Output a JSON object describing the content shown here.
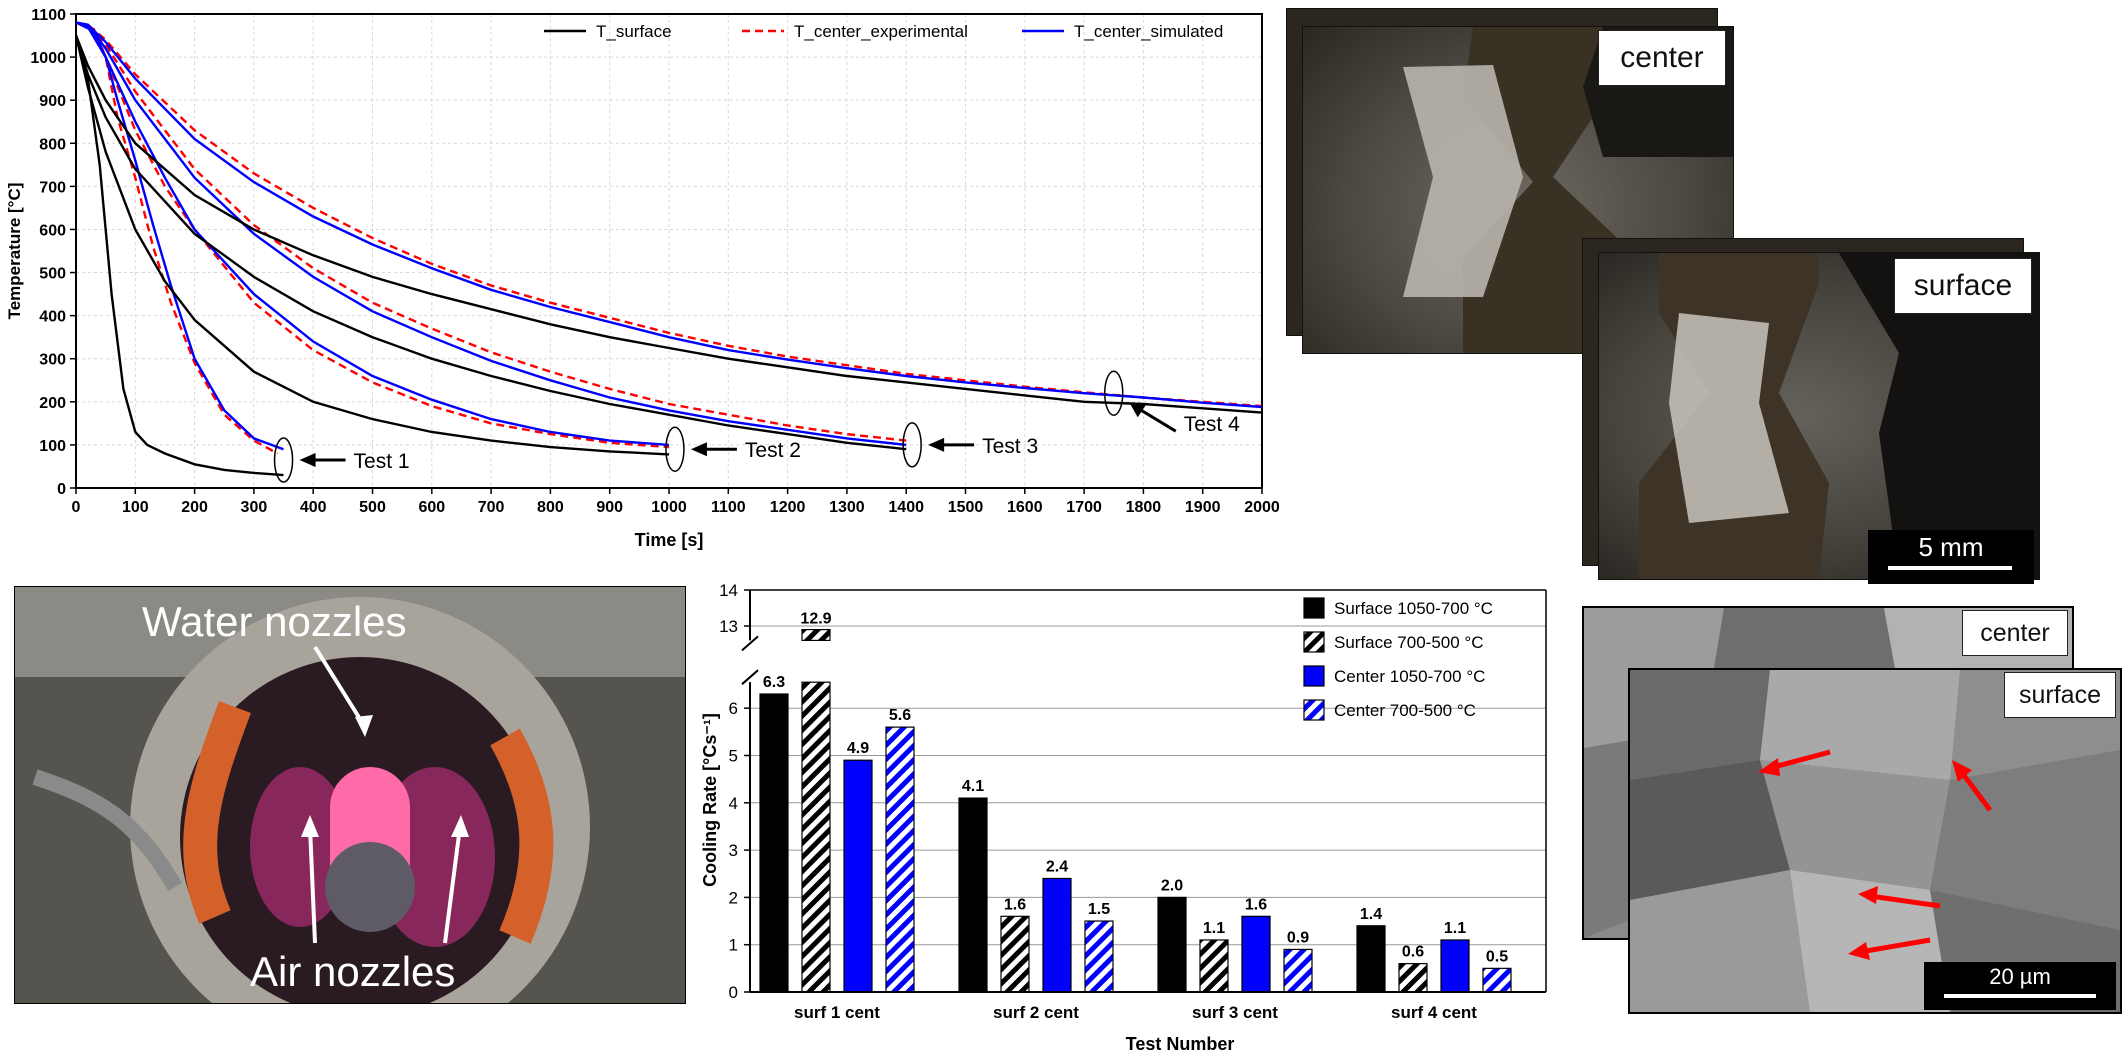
{
  "line_chart_legend": [
    "T_surface",
    "T_center_experimental",
    "T_center_simulated"
  ],
  "bar_chart_legend": [
    "Surface 1050-700 °C",
    "Surface 700-500 °C",
    "Center 1050-700 °C",
    "Center 700-500 °C"
  ],
  "photo_labels": {
    "macro_center": "center",
    "macro_surface": "surface",
    "macro_scale": "5 mm",
    "micro_center": "center",
    "micro_surface": "surface",
    "micro_scale": "20 µm",
    "water_nozzles": "Water nozzles",
    "air_nozzles": "Air nozzles"
  },
  "colors": {
    "surface": "#000000",
    "center_experimental": "#ff0000",
    "center_simulated": "#0000ff"
  },
  "chart_data": [
    {
      "type": "line",
      "xlabel": "Time [s]",
      "ylabel": "Temperature [°C]",
      "xlim": [
        0,
        2000
      ],
      "ylim": [
        0,
        1100
      ],
      "xticks": [
        0,
        100,
        200,
        300,
        400,
        500,
        600,
        700,
        800,
        900,
        1000,
        1100,
        1200,
        1300,
        1400,
        1500,
        1600,
        1700,
        1800,
        1900,
        2000
      ],
      "yticks": [
        0,
        100,
        200,
        300,
        400,
        500,
        600,
        700,
        800,
        900,
        1000,
        1100
      ],
      "grid": true,
      "legend": "top-right",
      "annotations": [
        "Test 1",
        "Test 2",
        "Test 3",
        "Test 4"
      ],
      "series": [
        {
          "name": "T_surface",
          "test": 1,
          "style": "solid",
          "color": "#000000",
          "x": [
            0,
            20,
            40,
            60,
            80,
            100,
            120,
            150,
            200,
            250,
            300,
            350
          ],
          "y": [
            1050,
            950,
            750,
            450,
            230,
            130,
            100,
            80,
            55,
            42,
            35,
            30
          ]
        },
        {
          "name": "T_center_experimental",
          "test": 1,
          "style": "dashed",
          "color": "#ff0000",
          "x": [
            0,
            30,
            50,
            70,
            100,
            130,
            160,
            200,
            250,
            300,
            340
          ],
          "y": [
            1080,
            1065,
            1000,
            860,
            720,
            560,
            430,
            290,
            170,
            110,
            80
          ]
        },
        {
          "name": "T_center_simulated",
          "test": 1,
          "style": "solid",
          "color": "#0000ff",
          "x": [
            0,
            30,
            50,
            70,
            100,
            130,
            160,
            200,
            250,
            300,
            350
          ],
          "y": [
            1080,
            1060,
            1000,
            900,
            760,
            610,
            470,
            300,
            180,
            115,
            90
          ]
        },
        {
          "name": "T_surface",
          "test": 2,
          "style": "solid",
          "color": "#000000",
          "x": [
            0,
            20,
            50,
            100,
            150,
            200,
            300,
            400,
            500,
            600,
            700,
            800,
            900,
            1000
          ],
          "y": [
            1050,
            930,
            780,
            600,
            480,
            390,
            270,
            200,
            160,
            130,
            110,
            95,
            85,
            78
          ]
        },
        {
          "name": "T_center_experimental",
          "test": 2,
          "style": "dashed",
          "color": "#ff0000",
          "x": [
            0,
            20,
            50,
            100,
            150,
            200,
            300,
            400,
            500,
            600,
            700,
            800,
            900,
            1000
          ],
          "y": [
            1080,
            1070,
            1000,
            830,
            700,
            600,
            430,
            320,
            245,
            190,
            150,
            125,
            105,
            95
          ]
        },
        {
          "name": "T_center_simulated",
          "test": 2,
          "style": "solid",
          "color": "#0000ff",
          "x": [
            0,
            20,
            50,
            100,
            150,
            200,
            300,
            400,
            500,
            600,
            700,
            800,
            900,
            1000
          ],
          "y": [
            1080,
            1070,
            1000,
            850,
            720,
            600,
            450,
            340,
            260,
            205,
            160,
            130,
            110,
            100
          ]
        },
        {
          "name": "T_surface",
          "test": 3,
          "style": "solid",
          "color": "#000000",
          "x": [
            0,
            20,
            50,
            100,
            200,
            300,
            400,
            500,
            600,
            700,
            800,
            900,
            1000,
            1100,
            1200,
            1300,
            1400
          ],
          "y": [
            1050,
            960,
            860,
            740,
            590,
            490,
            410,
            350,
            300,
            260,
            225,
            195,
            170,
            145,
            125,
            105,
            90
          ]
        },
        {
          "name": "T_center_experimental",
          "test": 3,
          "style": "dashed",
          "color": "#ff0000",
          "x": [
            0,
            20,
            50,
            100,
            200,
            300,
            400,
            500,
            600,
            700,
            800,
            900,
            1000,
            1100,
            1200,
            1300,
            1400
          ],
          "y": [
            1080,
            1075,
            1030,
            920,
            740,
            610,
            510,
            430,
            370,
            315,
            270,
            230,
            195,
            170,
            145,
            125,
            110
          ]
        },
        {
          "name": "T_center_simulated",
          "test": 3,
          "style": "solid",
          "color": "#0000ff",
          "x": [
            0,
            20,
            50,
            100,
            200,
            300,
            400,
            500,
            600,
            700,
            800,
            900,
            1000,
            1100,
            1200,
            1300,
            1400
          ],
          "y": [
            1080,
            1075,
            1020,
            900,
            720,
            590,
            490,
            410,
            350,
            295,
            250,
            210,
            180,
            155,
            135,
            115,
            100
          ]
        },
        {
          "name": "T_surface",
          "test": 4,
          "style": "solid",
          "color": "#000000",
          "x": [
            0,
            20,
            50,
            100,
            200,
            300,
            400,
            500,
            600,
            700,
            800,
            900,
            1000,
            1100,
            1200,
            1300,
            1400,
            1500,
            1600,
            1700,
            1800,
            1900,
            2000
          ],
          "y": [
            1050,
            980,
            900,
            800,
            680,
            600,
            540,
            490,
            450,
            415,
            380,
            350,
            325,
            300,
            280,
            260,
            245,
            230,
            215,
            200,
            195,
            185,
            175
          ]
        },
        {
          "name": "T_center_experimental",
          "test": 4,
          "style": "dashed",
          "color": "#ff0000",
          "x": [
            0,
            20,
            50,
            100,
            200,
            300,
            400,
            500,
            600,
            700,
            800,
            900,
            1000,
            1100,
            1200,
            1300,
            1400,
            1500,
            1600,
            1700,
            1800,
            1900,
            2000
          ],
          "y": [
            1080,
            1075,
            1040,
            960,
            830,
            730,
            650,
            580,
            520,
            470,
            430,
            395,
            360,
            330,
            305,
            285,
            265,
            250,
            235,
            222,
            210,
            200,
            190
          ]
        },
        {
          "name": "T_center_simulated",
          "test": 4,
          "style": "solid",
          "color": "#0000ff",
          "x": [
            0,
            20,
            50,
            100,
            200,
            300,
            400,
            500,
            600,
            700,
            800,
            900,
            1000,
            1100,
            1200,
            1300,
            1400,
            1500,
            1600,
            1700,
            1800,
            1900,
            2000
          ],
          "y": [
            1080,
            1075,
            1035,
            950,
            810,
            710,
            630,
            565,
            510,
            460,
            420,
            385,
            350,
            320,
            298,
            278,
            260,
            245,
            232,
            220,
            210,
            198,
            188
          ]
        }
      ]
    },
    {
      "type": "bar",
      "xlabel": "Test Number",
      "ylabel": "Cooling Rate [°Cs⁻¹]",
      "categories": [
        "surf 1 cent",
        "surf 2 cent",
        "surf 3 cent",
        "surf 4 cent"
      ],
      "y_broken_axis": {
        "lower": [
          0,
          6.5
        ],
        "upper": [
          12.5,
          14
        ]
      },
      "yticks_lower": [
        0,
        1,
        2,
        3,
        4,
        5,
        6
      ],
      "yticks_upper": [
        13,
        14
      ],
      "legend": "top-right",
      "series": [
        {
          "name": "Surface 1050-700 °C",
          "pattern": "solid",
          "color": "#000000",
          "values": [
            6.3,
            4.1,
            2.0,
            1.4
          ],
          "labels": [
            "6.3",
            "4.1",
            "2.0",
            "1.4"
          ]
        },
        {
          "name": "Surface 700-500 °C",
          "pattern": "hatched",
          "color": "#000000",
          "values": [
            12.9,
            1.6,
            1.1,
            0.6
          ],
          "labels": [
            "12.9",
            "1.6",
            "1.1",
            "0.6"
          ]
        },
        {
          "name": "Center 1050-700 °C",
          "pattern": "solid",
          "color": "#0000ff",
          "values": [
            4.9,
            2.4,
            1.6,
            1.1
          ],
          "labels": [
            "4.9",
            "2.4",
            "1.6",
            "1.1"
          ]
        },
        {
          "name": "Center 700-500 °C",
          "pattern": "hatched",
          "color": "#0000ff",
          "values": [
            5.6,
            1.5,
            0.9,
            0.5
          ],
          "labels": [
            "5.6",
            "1.5",
            "0.9",
            "0.5"
          ]
        }
      ]
    }
  ]
}
